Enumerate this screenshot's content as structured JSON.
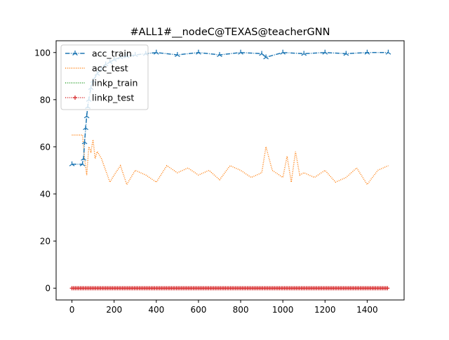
{
  "chart_data": {
    "type": "line",
    "title": "#ALL1#__nodeC@TEXAS@teacherGNN",
    "xlabel": "",
    "ylabel": "",
    "xlim": [
      -75,
      1575
    ],
    "ylim": [
      -5,
      105
    ],
    "grid": false,
    "legend_position": "top-left",
    "x_ticks": [
      0,
      200,
      400,
      600,
      800,
      1000,
      1200,
      1400
    ],
    "y_ticks": [
      0,
      20,
      40,
      60,
      80,
      100
    ],
    "x_max": 1500,
    "series": [
      {
        "name": "acc_train",
        "color": "#1f77b4",
        "linestyle": "dashdot",
        "marker": "tri_up",
        "points": [
          [
            0,
            52.6
          ],
          [
            50,
            52.6
          ],
          [
            55,
            55
          ],
          [
            60,
            62
          ],
          [
            65,
            68
          ],
          [
            70,
            73
          ],
          [
            75,
            77
          ],
          [
            80,
            80
          ],
          [
            90,
            85
          ],
          [
            100,
            88
          ],
          [
            120,
            91
          ],
          [
            140,
            93
          ],
          [
            160,
            95
          ],
          [
            180,
            96
          ],
          [
            200,
            97
          ],
          [
            230,
            98
          ],
          [
            260,
            98.5
          ],
          [
            300,
            99
          ],
          [
            350,
            99.5
          ],
          [
            400,
            100
          ],
          [
            500,
            99
          ],
          [
            600,
            100
          ],
          [
            700,
            99
          ],
          [
            800,
            100
          ],
          [
            900,
            99.5
          ],
          [
            920,
            98
          ],
          [
            1000,
            100
          ],
          [
            1100,
            99.5
          ],
          [
            1200,
            100
          ],
          [
            1300,
            99.5
          ],
          [
            1400,
            100
          ],
          [
            1500,
            100
          ]
        ]
      },
      {
        "name": "acc_test",
        "color": "#ff7f0e",
        "linestyle": "dotted",
        "marker": "none",
        "points": [
          [
            0,
            65
          ],
          [
            50,
            65
          ],
          [
            55,
            60
          ],
          [
            60,
            55
          ],
          [
            70,
            48
          ],
          [
            80,
            60
          ],
          [
            90,
            58
          ],
          [
            100,
            63
          ],
          [
            110,
            55
          ],
          [
            120,
            58
          ],
          [
            140,
            55
          ],
          [
            160,
            50
          ],
          [
            180,
            45
          ],
          [
            200,
            48
          ],
          [
            230,
            52
          ],
          [
            260,
            44
          ],
          [
            300,
            50
          ],
          [
            350,
            48
          ],
          [
            400,
            45
          ],
          [
            450,
            52
          ],
          [
            500,
            49
          ],
          [
            550,
            51
          ],
          [
            600,
            48
          ],
          [
            650,
            50
          ],
          [
            700,
            46
          ],
          [
            750,
            52
          ],
          [
            800,
            50
          ],
          [
            850,
            47
          ],
          [
            900,
            49
          ],
          [
            920,
            60
          ],
          [
            950,
            50
          ],
          [
            1000,
            47
          ],
          [
            1020,
            56
          ],
          [
            1040,
            45
          ],
          [
            1060,
            58
          ],
          [
            1080,
            48
          ],
          [
            1100,
            49
          ],
          [
            1150,
            47
          ],
          [
            1200,
            50
          ],
          [
            1250,
            45
          ],
          [
            1300,
            47
          ],
          [
            1350,
            51
          ],
          [
            1400,
            44
          ],
          [
            1450,
            50
          ],
          [
            1500,
            52
          ]
        ]
      },
      {
        "name": "linkp_train",
        "color": "#2ca02c",
        "linestyle": "dotted",
        "marker": "none",
        "points": [
          [
            0,
            0
          ],
          [
            1500,
            0
          ]
        ]
      },
      {
        "name": "linkp_test",
        "color": "#d62728",
        "linestyle": "dotted",
        "marker": "plus",
        "points": [
          [
            0,
            0
          ],
          [
            1500,
            0
          ]
        ]
      }
    ]
  }
}
